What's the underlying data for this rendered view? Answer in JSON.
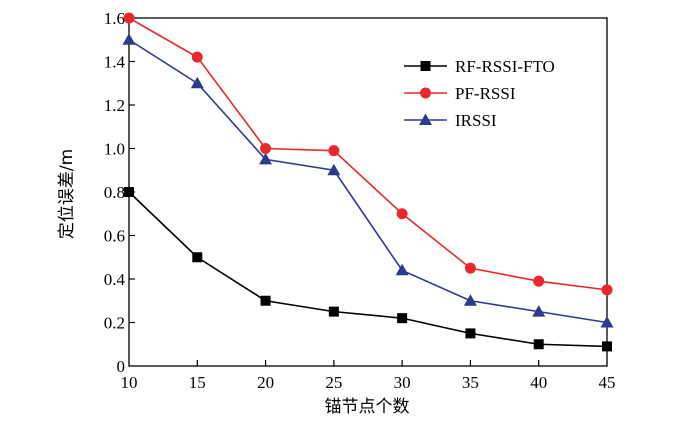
{
  "chart_data": {
    "type": "line",
    "title": "",
    "xlabel": "锚节点个数",
    "ylabel": "定位误差/m",
    "x": [
      10,
      15,
      20,
      25,
      30,
      35,
      40,
      45
    ],
    "x_ticks": [
      "10",
      "15",
      "20",
      "25",
      "30",
      "35",
      "40",
      "45"
    ],
    "y_ticks": [
      "0",
      "0.2",
      "0.4",
      "0.6",
      "0.8",
      "1.0",
      "1.2",
      "1.4",
      "1.6"
    ],
    "xlim": [
      10,
      45
    ],
    "ylim": [
      0,
      1.6
    ],
    "grid": false,
    "legend_position": "top-right",
    "series": [
      {
        "name": "RF-RSSI-FTO",
        "values": [
          0.8,
          0.5,
          0.3,
          0.25,
          0.22,
          0.15,
          0.1,
          0.09
        ],
        "color": "#000000",
        "marker": "square"
      },
      {
        "name": "PF-RSSI",
        "values": [
          1.6,
          1.42,
          1.0,
          0.99,
          0.7,
          0.45,
          0.39,
          0.35
        ],
        "color": "#e8292b",
        "marker": "circle"
      },
      {
        "name": "IRSSI",
        "values": [
          1.5,
          1.3,
          0.95,
          0.9,
          0.44,
          0.3,
          0.25,
          0.2
        ],
        "color": "#2e3a8c",
        "marker": "triangle"
      }
    ]
  }
}
